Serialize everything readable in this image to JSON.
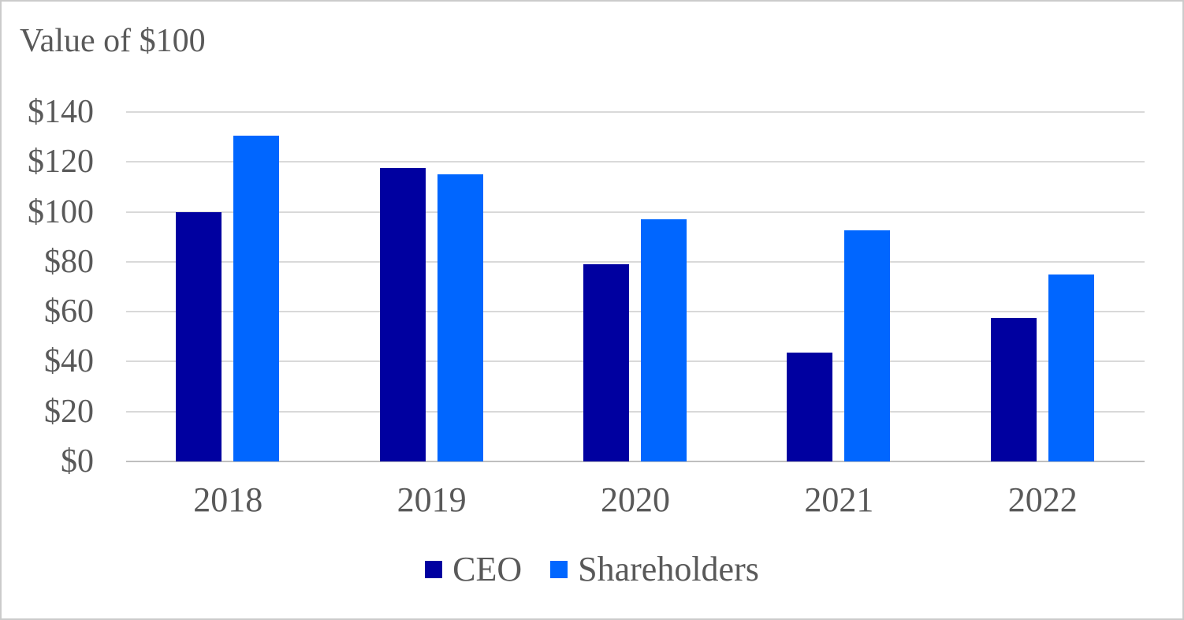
{
  "chart_data": {
    "type": "bar",
    "title": "Value of $100",
    "categories": [
      "2018",
      "2019",
      "2020",
      "2021",
      "2022"
    ],
    "series": [
      {
        "name": "CEO",
        "color": "#0000A0",
        "values": [
          100,
          117.5,
          79,
          43.5,
          57.5
        ]
      },
      {
        "name": "Shareholders",
        "color": "#0066FF",
        "values": [
          130.5,
          115,
          97,
          92.5,
          75
        ]
      }
    ],
    "xlabel": "",
    "ylabel": "",
    "ylim": [
      0,
      140
    ],
    "ytick_step": 20,
    "ytick_labels": [
      "$0",
      "$20",
      "$40",
      "$60",
      "$80",
      "$100",
      "$120",
      "$140"
    ],
    "grid": true,
    "legend_position": "bottom",
    "colors": {
      "text": "#595959",
      "gridline": "#D9D9D9",
      "axis_line": "#BFBFBF",
      "background": "#FFFFFF",
      "border": "#CBCBCB"
    }
  }
}
